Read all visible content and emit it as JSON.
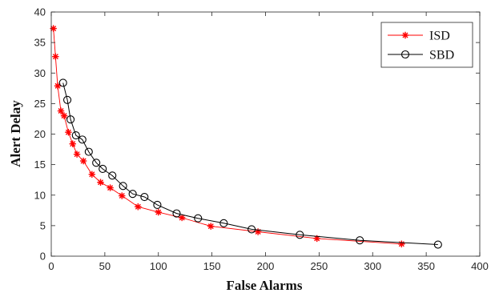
{
  "chart_data": {
    "type": "line",
    "title": "",
    "xlabel": "False Alarms",
    "ylabel": "Alert Delay",
    "xlim": [
      0,
      400
    ],
    "ylim": [
      0,
      40
    ],
    "xticks": [
      0,
      50,
      100,
      150,
      200,
      250,
      300,
      350,
      400
    ],
    "yticks": [
      0,
      5,
      10,
      15,
      20,
      25,
      30,
      35,
      40
    ],
    "grid": false,
    "legend_position": "top-right",
    "series": [
      {
        "name": "ISD",
        "color": "#ff0000",
        "marker": "asterisk",
        "x": [
          2,
          4,
          6,
          9,
          12,
          16,
          20,
          24,
          30,
          38,
          46,
          55,
          66,
          81,
          100,
          122,
          149,
          193,
          248,
          327
        ],
        "y": [
          37.3,
          32.7,
          27.9,
          23.8,
          23.0,
          20.3,
          18.4,
          16.7,
          15.6,
          13.4,
          12.1,
          11.2,
          9.9,
          8.1,
          7.2,
          6.3,
          4.9,
          4.0,
          2.9,
          2.0
        ]
      },
      {
        "name": "SBD",
        "color": "#000000",
        "marker": "circle",
        "x": [
          11,
          15,
          18,
          23,
          29,
          35,
          42,
          48,
          57,
          67,
          76,
          87,
          99,
          117,
          137,
          161,
          187,
          232,
          288,
          361
        ],
        "y": [
          28.4,
          25.6,
          22.4,
          19.8,
          19.1,
          17.1,
          15.3,
          14.3,
          13.2,
          11.5,
          10.2,
          9.7,
          8.4,
          7.0,
          6.2,
          5.4,
          4.4,
          3.5,
          2.6,
          1.9
        ]
      }
    ]
  }
}
